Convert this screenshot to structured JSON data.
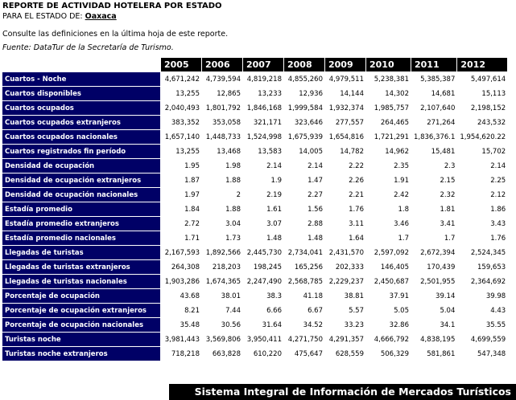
{
  "header": {
    "title": "REPORTE DE ACTIVIDAD HOTELERA POR ESTADO",
    "subtitle_prefix": "PARA EL ESTADO DE:",
    "state": "Oaxaca",
    "note": "Consulte las definiciones en la última hoja de este reporte.",
    "source": "Fuente: DataTur de la Secretaría de Turismo."
  },
  "table": {
    "years": [
      "2005",
      "2006",
      "2007",
      "2008",
      "2009",
      "2010",
      "2011",
      "2012"
    ],
    "rows": [
      {
        "label": "Cuartos - Noche",
        "values": [
          "4,671,242",
          "4,739,594",
          "4,819,218",
          "4,855,260",
          "4,979,511",
          "5,238,381",
          "5,385,387",
          "5,497,614"
        ]
      },
      {
        "label": "Cuartos disponibles",
        "values": [
          "13,255",
          "12,865",
          "13,233",
          "12,936",
          "14,144",
          "14,302",
          "14,681",
          "15,113"
        ]
      },
      {
        "label": "Cuartos ocupados",
        "values": [
          "2,040,493",
          "1,801,792",
          "1,846,168",
          "1,999,584",
          "1,932,374",
          "1,985,757",
          "2,107,640",
          "2,198,152"
        ]
      },
      {
        "label": "Cuartos ocupados extranjeros",
        "values": [
          "383,352",
          "353,058",
          "321,171",
          "323,646",
          "277,557",
          "264,465",
          "271,264",
          "243,532"
        ]
      },
      {
        "label": "Cuartos ocupados nacionales",
        "values": [
          "1,657,140",
          "1,448,733",
          "1,524,998",
          "1,675,939",
          "1,654,816",
          "1,721,291",
          "1,836,376.1",
          "1,954,620.22"
        ]
      },
      {
        "label": "Cuartos registrados fin período",
        "values": [
          "13,255",
          "13,468",
          "13,583",
          "14,005",
          "14,782",
          "14,962",
          "15,481",
          "15,702"
        ]
      },
      {
        "label": "Densidad de ocupación",
        "values": [
          "1.95",
          "1.98",
          "2.14",
          "2.14",
          "2.22",
          "2.35",
          "2.3",
          "2.14"
        ]
      },
      {
        "label": "Densidad de ocupación extranjeros",
        "values": [
          "1.87",
          "1.88",
          "1.9",
          "1.47",
          "2.26",
          "1.91",
          "2.15",
          "2.25"
        ]
      },
      {
        "label": "Densidad de ocupación nacionales",
        "values": [
          "1.97",
          "2",
          "2.19",
          "2.27",
          "2.21",
          "2.42",
          "2.32",
          "2.12"
        ]
      },
      {
        "label": "Estadía promedio",
        "values": [
          "1.84",
          "1.88",
          "1.61",
          "1.56",
          "1.76",
          "1.8",
          "1.81",
          "1.86"
        ]
      },
      {
        "label": "Estadía promedio extranjeros",
        "values": [
          "2.72",
          "3.04",
          "3.07",
          "2.88",
          "3.11",
          "3.46",
          "3.41",
          "3.43"
        ]
      },
      {
        "label": "Estadía promedio nacionales",
        "values": [
          "1.71",
          "1.73",
          "1.48",
          "1.48",
          "1.64",
          "1.7",
          "1.7",
          "1.76"
        ]
      },
      {
        "label": "Llegadas de turistas",
        "values": [
          "2,167,593",
          "1,892,566",
          "2,445,730",
          "2,734,041",
          "2,431,570",
          "2,597,092",
          "2,672,394",
          "2,524,345"
        ]
      },
      {
        "label": "Llegadas de turistas extranjeros",
        "values": [
          "264,308",
          "218,203",
          "198,245",
          "165,256",
          "202,333",
          "146,405",
          "170,439",
          "159,653"
        ]
      },
      {
        "label": "Llegadas de turistas nacionales",
        "values": [
          "1,903,286",
          "1,674,365",
          "2,247,490",
          "2,568,785",
          "2,229,237",
          "2,450,687",
          "2,501,955",
          "2,364,692"
        ]
      },
      {
        "label": "Porcentaje de ocupación",
        "values": [
          "43.68",
          "38.01",
          "38.3",
          "41.18",
          "38.81",
          "37.91",
          "39.14",
          "39.98"
        ]
      },
      {
        "label": "Porcentaje de ocupación extranjeros",
        "values": [
          "8.21",
          "7.44",
          "6.66",
          "6.67",
          "5.57",
          "5.05",
          "5.04",
          "4.43"
        ]
      },
      {
        "label": "Porcentaje de ocupación nacionales",
        "values": [
          "35.48",
          "30.56",
          "31.64",
          "34.52",
          "33.23",
          "32.86",
          "34.1",
          "35.55"
        ]
      },
      {
        "label": "Turistas noche",
        "values": [
          "3,981,443",
          "3,569,806",
          "3,950,411",
          "4,271,750",
          "4,291,357",
          "4,666,792",
          "4,838,195",
          "4,699,559"
        ]
      },
      {
        "label": "Turistas noche extranjeros",
        "values": [
          "718,218",
          "663,828",
          "610,220",
          "475,647",
          "628,559",
          "506,329",
          "581,861",
          "547,348"
        ]
      }
    ]
  },
  "footer": {
    "text": "Sistema Integral de Información de Mercados Turísticos"
  }
}
